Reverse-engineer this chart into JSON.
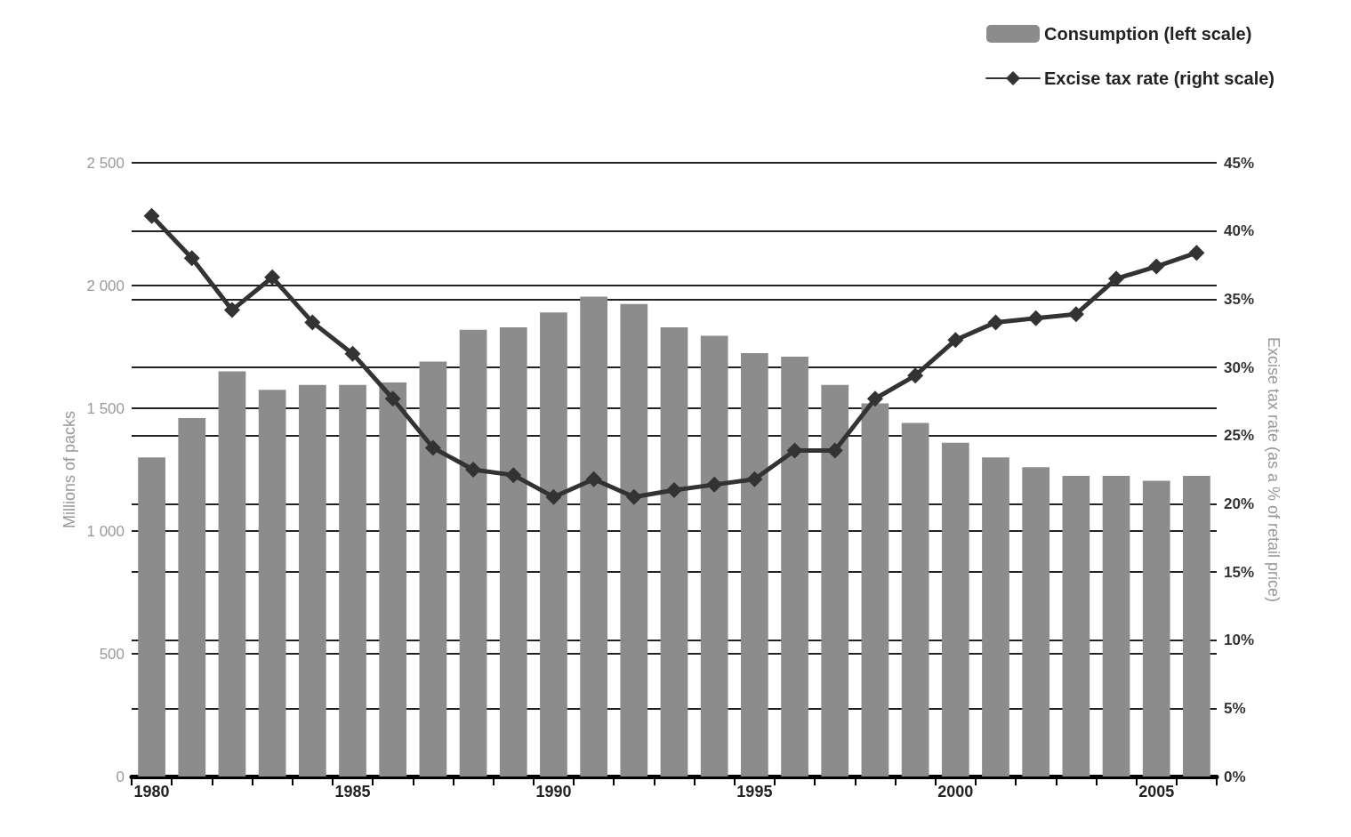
{
  "chart_data": {
    "type": "bar",
    "ylabel": "Millions of packs",
    "y2label": "Excise tax rate (as a % of retail price)",
    "categories": [
      "1980",
      null,
      null,
      null,
      null,
      "1985",
      null,
      null,
      null,
      null,
      "1990",
      null,
      null,
      null,
      null,
      "1995",
      null,
      null,
      null,
      null,
      "2000",
      null,
      null,
      null,
      null,
      "2005",
      null
    ],
    "series": [
      {
        "name": "Consumption (left scale)",
        "color": "#8c8c8c",
        "values": [
          1300,
          1460,
          1650,
          1575,
          1595,
          1595,
          1605,
          1690,
          1820,
          1830,
          1890,
          1955,
          1925,
          1830,
          1795,
          1725,
          1710,
          1595,
          1520,
          1440,
          1360,
          1300,
          1260,
          1225,
          1225,
          1205,
          1225
        ]
      },
      {
        "name": "Excise tax rate (right scale)",
        "type": "line",
        "axis": "y2",
        "color": "#333333",
        "marker": "diamond",
        "values": [
          41.1,
          38.0,
          34.2,
          36.6,
          33.3,
          31.0,
          27.7,
          24.1,
          22.5,
          22.1,
          20.5,
          21.8,
          20.5,
          21.0,
          21.4,
          21.8,
          23.9,
          23.9,
          27.7,
          29.4,
          32.0,
          33.3,
          33.6,
          33.9,
          36.5,
          37.4,
          38.4
        ]
      }
    ],
    "ylim": [
      0,
      2500
    ],
    "yticks": [
      0,
      500,
      {
        "value": 1000,
        "label": "1 000"
      },
      {
        "value": 1500,
        "label": "1 500"
      },
      {
        "value": 2000,
        "label": "2 000"
      },
      {
        "value": 2500,
        "label": "2 500"
      }
    ],
    "y2lim": [
      0,
      45
    ],
    "y2ticks": [
      {
        "value": 0,
        "label": "0%"
      },
      {
        "value": 5,
        "label": "5%"
      },
      {
        "value": 10,
        "label": "10%"
      },
      {
        "value": 15,
        "label": "15%"
      },
      {
        "value": 20,
        "label": "20%"
      },
      {
        "value": 25,
        "label": "25%"
      },
      {
        "value": 30,
        "label": "30%"
      },
      {
        "value": 35,
        "label": "35%"
      },
      {
        "value": 40,
        "label": "40%"
      },
      {
        "value": 45,
        "label": "45%"
      }
    ],
    "grid": true,
    "legend": "top right"
  }
}
